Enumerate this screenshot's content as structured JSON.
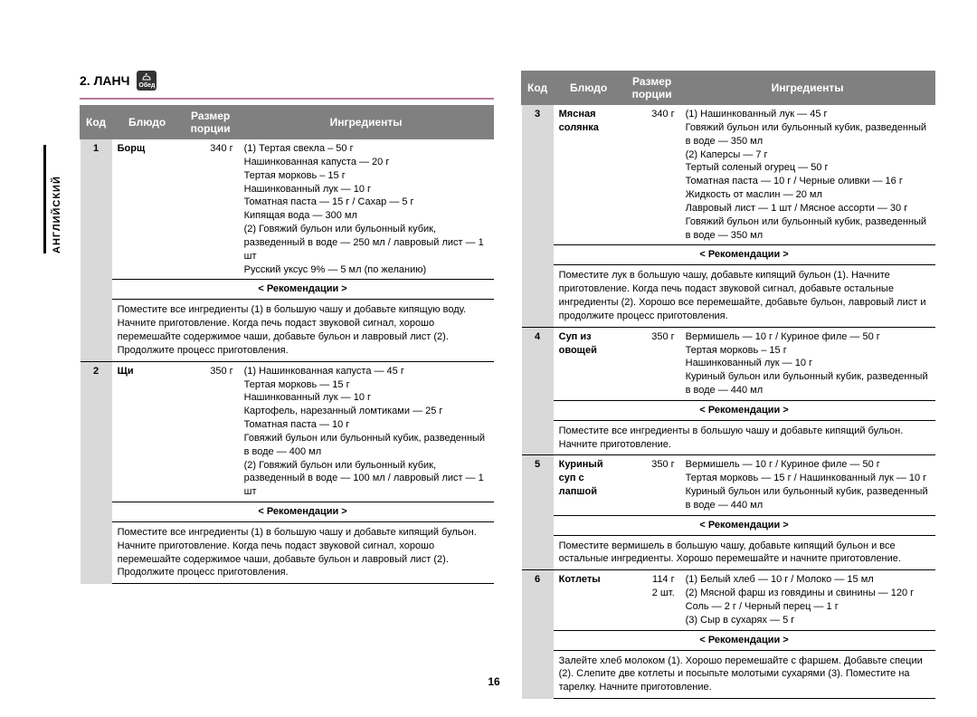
{
  "side_tab": "АНГЛИЙСКИЙ",
  "section_title": "2. ЛАНЧ",
  "icon_label": "Обед",
  "page_number": "16",
  "headers": {
    "code": "Код",
    "dish": "Блюдо",
    "size": "Размер порции",
    "ing": "Ингредиенты"
  },
  "rec_label": "< Рекомендации >",
  "left_rows": [
    {
      "code": "1",
      "dish": "Борщ",
      "size": "340 г",
      "ing": "(1) Тертая свекла – 50 г\nНашинкованная капуста — 20 г\nТертая морковь – 15 г\nНашинкованный лук — 10 г\nТоматная паста — 15 г / Сахар — 5 г\nКипящая вода — 300 мл\n(2) Говяжий бульон или бульонный кубик, разведенный в воде — 250 мл / лавровый лист — 1 шт\nРусский уксус 9% — 5 мл (по желанию)",
      "rec": "Поместите все ингредиенты (1) в большую чашу и добавьте кипящую воду. Начните приготовление. Когда печь подаст звуковой сигнал, хорошо перемешайте содержимое чаши, добавьте бульон и лавровый лист (2). Продолжите процесс приготовления."
    },
    {
      "code": "2",
      "dish": "Щи",
      "size": "350 г",
      "ing": "(1) Нашинкованная капуста — 45 г\nТертая морковь — 15 г\nНашинкованный лук — 10 г\nКартофель, нарезанный ломтиками — 25 г\nТоматная паста — 10 г\nГовяжий бульон или бульонный кубик, разведенный в воде — 400 мл\n(2) Говяжий бульон или бульонный кубик, разведенный в воде — 100 мл / лавровый лист — 1 шт",
      "rec": "Поместите все ингредиенты (1) в большую чашу и добавьте кипящий бульон. Начните приготовление. Когда печь подаст звуковой сигнал, хорошо перемешайте содержимое чаши, добавьте бульон и лавровый лист (2). Продолжите процесс приготовления."
    }
  ],
  "right_rows": [
    {
      "code": "3",
      "dish": "Мясная солянка",
      "size": "340 г",
      "ing": "(1) Нашинкованный лук — 45 г\nГовяжий бульон или бульонный кубик, разведенный в воде — 350 мл\n(2) Каперсы — 7 г\nТертый соленый огурец — 50 г\nТоматная паста — 10 г / Черные оливки — 16 г\nЖидкость от маслин — 20 мл\nЛавровый лист — 1 шт / Мясное ассорти — 30 г\nГовяжий бульон или бульонный кубик, разведенный в воде — 350 мл",
      "rec": "Поместите лук в большую чашу, добавьте кипящий бульон (1). Начните приготовление. Когда печь подаст звуковой сигнал, добавьте остальные ингредиенты (2). Хорошо все перемешайте, добавьте бульон, лавровый лист и продолжите процесс приготовления."
    },
    {
      "code": "4",
      "dish": "Суп из овощей",
      "size": "350 г",
      "ing": "Вермишель — 10 г / Куриное филе — 50 г\nТертая морковь – 15 г\nНашинкованный лук — 10 г\nКуриный бульон или бульонный кубик, разведенный в воде — 440 мл",
      "rec": "Поместите все ингредиенты в большую чашу и добавьте кипящий бульон. Начните приготовление."
    },
    {
      "code": "5",
      "dish": "Куриный суп с лапшой",
      "size": "350 г",
      "ing": "Вермишель — 10 г / Куриное филе — 50 г\nТертая морковь — 15 г / Нашинкованный лук — 10 г\nКуриный бульон или бульонный кубик, разведенный в воде — 440 мл",
      "rec": "Поместите вермишель в большую чашу, добавьте кипящий бульон и все остальные ингредиенты. Хорошо перемешайте и начните приготовление."
    },
    {
      "code": "6",
      "dish": "Котлеты",
      "size": "114 г\n2 шт.",
      "ing": "(1) Белый хлеб — 10 г / Молоко — 15 мл\n(2) Мясной фарш из говядины и свинины — 120 г\nСоль — 2 г / Черный перец — 1 г\n(3) Сыр в сухарях — 5 г",
      "rec": "Залейте хлеб молоком (1). Хорошо перемешайте с фаршем. Добавьте специи (2). Слепите две котлеты и посыпьте молотыми сухарями (3). Поместите на тарелку. Начните приготовление."
    }
  ]
}
